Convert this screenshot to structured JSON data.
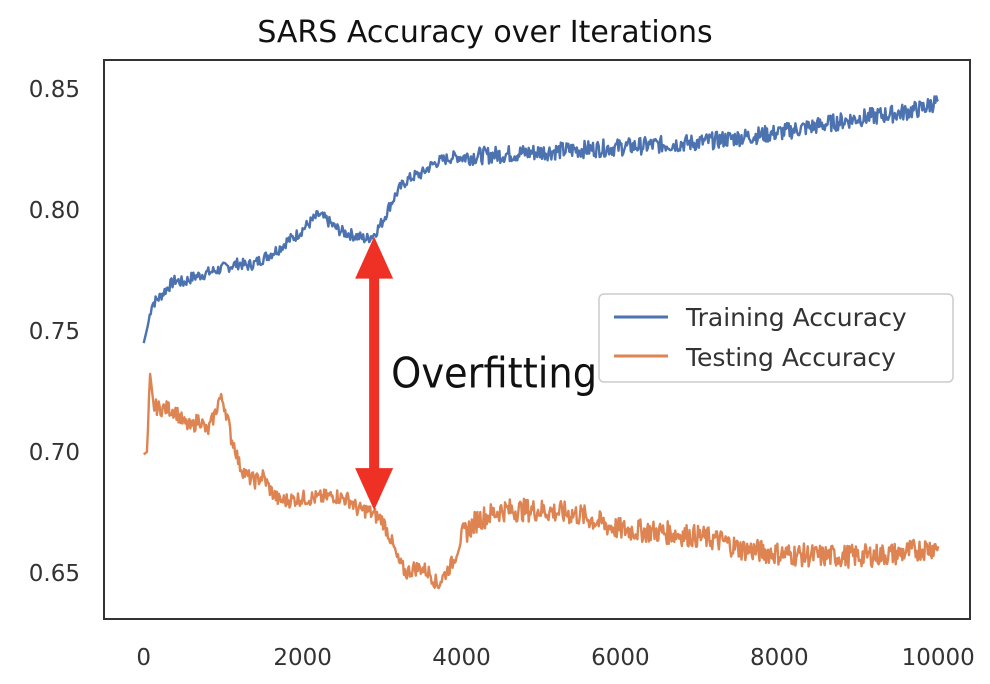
{
  "chart_data": {
    "type": "line",
    "title": "SARS  Accuracy over Iterations",
    "xlabel": "",
    "ylabel": "",
    "xlim": [
      -500,
      10400
    ],
    "ylim": [
      0.631,
      0.862
    ],
    "xticks": [
      0,
      2000,
      4000,
      6000,
      8000,
      10000
    ],
    "xtick_labels": [
      "0",
      "2000",
      "4000",
      "6000",
      "8000",
      "10000"
    ],
    "yticks": [
      0.65,
      0.7,
      0.75,
      0.8,
      0.85
    ],
    "ytick_labels": [
      "0.65",
      "0.70",
      "0.75",
      "0.80",
      "0.85"
    ],
    "grid": false,
    "legend": "center-right",
    "series": [
      {
        "name": "Training Accuracy",
        "color": "#4c72b0",
        "noise": 0.003,
        "x": [
          0,
          50,
          100,
          200,
          300,
          400,
          500,
          600,
          700,
          800,
          900,
          1000,
          1100,
          1200,
          1300,
          1400,
          1500,
          1600,
          1700,
          1800,
          1900,
          2000,
          2100,
          2200,
          2300,
          2400,
          2500,
          2600,
          2700,
          2800,
          2900,
          3000,
          3100,
          3200,
          3300,
          3400,
          3500,
          3600,
          3700,
          3800,
          3900,
          4000,
          4500,
          5000,
          5500,
          6000,
          6500,
          7000,
          7500,
          8000,
          8500,
          9000,
          9500,
          9800,
          10000
        ],
        "y": [
          0.745,
          0.752,
          0.761,
          0.764,
          0.768,
          0.771,
          0.77,
          0.772,
          0.773,
          0.774,
          0.775,
          0.776,
          0.777,
          0.778,
          0.777,
          0.778,
          0.78,
          0.782,
          0.784,
          0.787,
          0.789,
          0.792,
          0.795,
          0.798,
          0.796,
          0.793,
          0.791,
          0.79,
          0.789,
          0.788,
          0.79,
          0.795,
          0.802,
          0.808,
          0.812,
          0.814,
          0.815,
          0.818,
          0.82,
          0.821,
          0.822,
          0.822,
          0.823,
          0.824,
          0.825,
          0.826,
          0.827,
          0.828,
          0.83,
          0.832,
          0.835,
          0.838,
          0.84,
          0.842,
          0.845
        ]
      },
      {
        "name": "Testing Accuracy",
        "color": "#dd8452",
        "noise": 0.004,
        "x": [
          0,
          40,
          80,
          120,
          200,
          300,
          400,
          500,
          600,
          700,
          800,
          900,
          950,
          1000,
          1050,
          1100,
          1150,
          1200,
          1300,
          1400,
          1500,
          1600,
          1700,
          1800,
          2000,
          2200,
          2400,
          2600,
          2700,
          2800,
          2900,
          3000,
          3100,
          3200,
          3300,
          3400,
          3500,
          3600,
          3700,
          3800,
          3900,
          4000,
          4200,
          4500,
          5000,
          5500,
          5800,
          6000,
          6500,
          7000,
          7300,
          7500,
          8000,
          8500,
          9000,
          9500,
          9800,
          10000
        ],
        "y": [
          0.699,
          0.7,
          0.73,
          0.719,
          0.718,
          0.718,
          0.717,
          0.712,
          0.71,
          0.714,
          0.708,
          0.716,
          0.722,
          0.721,
          0.715,
          0.706,
          0.702,
          0.695,
          0.69,
          0.688,
          0.69,
          0.684,
          0.68,
          0.68,
          0.681,
          0.681,
          0.682,
          0.68,
          0.676,
          0.676,
          0.674,
          0.672,
          0.665,
          0.655,
          0.65,
          0.652,
          0.652,
          0.65,
          0.645,
          0.65,
          0.655,
          0.665,
          0.672,
          0.676,
          0.676,
          0.674,
          0.67,
          0.668,
          0.667,
          0.665,
          0.663,
          0.66,
          0.658,
          0.657,
          0.657,
          0.658,
          0.66,
          0.661
        ]
      }
    ],
    "annotation": {
      "text": "Overfitting",
      "x": 2900,
      "y_top": 0.789,
      "y_bottom": 0.676,
      "color": "#ee3124"
    }
  }
}
